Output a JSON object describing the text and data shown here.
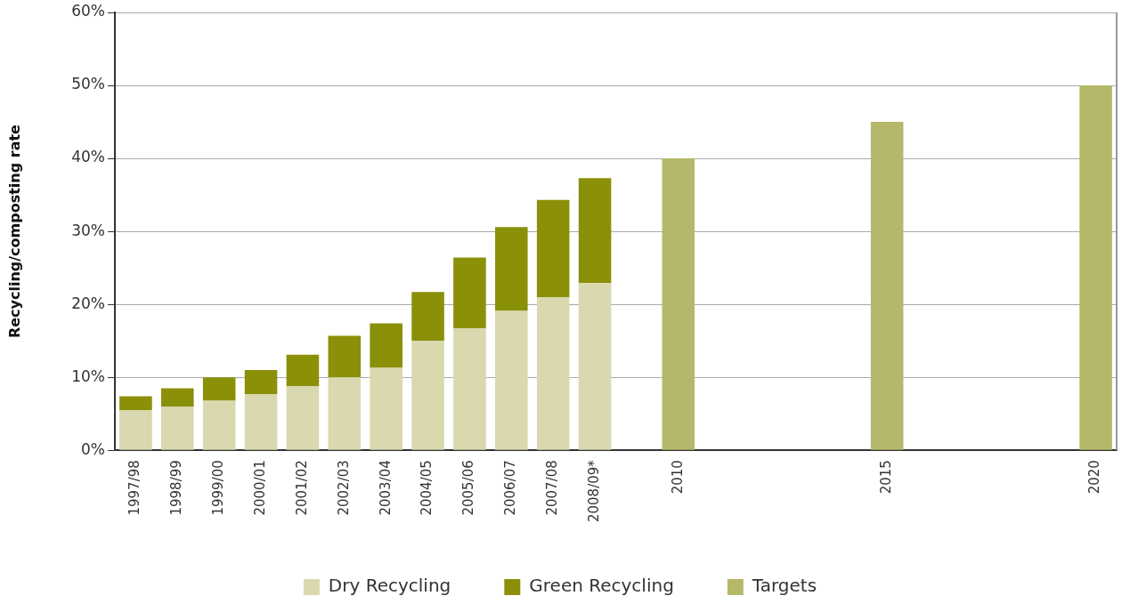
{
  "chart_data": {
    "type": "bar",
    "ylabel": "Recycling/composting rate",
    "categories": [
      "1997/98",
      "1998/99",
      "1999/00",
      "2000/01",
      "2001/02",
      "2002/03",
      "2003/04",
      "2004/05",
      "2005/06",
      "2006/07",
      "2007/08",
      "2008/09*",
      null,
      "2010",
      null,
      null,
      null,
      null,
      "2015",
      null,
      null,
      null,
      null,
      "2020"
    ],
    "stacked": true,
    "series": [
      {
        "name": "Dry Recycling",
        "color": "#d9d8ae",
        "values": [
          5.5,
          6.0,
          6.8,
          7.7,
          8.8,
          10.0,
          11.3,
          15.0,
          16.7,
          19.1,
          21.0,
          22.9,
          null,
          null,
          null,
          null,
          null,
          null,
          null,
          null,
          null,
          null,
          null,
          null
        ]
      },
      {
        "name": "Green Recycling",
        "color": "#8b9009",
        "values": [
          1.9,
          2.5,
          3.2,
          3.3,
          4.3,
          5.7,
          6.1,
          6.7,
          9.7,
          11.5,
          13.3,
          14.4,
          null,
          null,
          null,
          null,
          null,
          null,
          null,
          null,
          null,
          null,
          null,
          null
        ]
      },
      {
        "name": "Targets",
        "color": "#b5b86a",
        "values": [
          null,
          null,
          null,
          null,
          null,
          null,
          null,
          null,
          null,
          null,
          null,
          null,
          null,
          40,
          null,
          null,
          null,
          null,
          45,
          null,
          null,
          null,
          null,
          50
        ]
      }
    ],
    "ylim": [
      0,
      60
    ],
    "yticks": [
      {
        "value": 0,
        "label": "0%"
      },
      {
        "value": 10,
        "label": "10%"
      },
      {
        "value": 20,
        "label": "20%"
      },
      {
        "value": 30,
        "label": "30%"
      },
      {
        "value": 40,
        "label": "40%"
      },
      {
        "value": 50,
        "label": "50%"
      },
      {
        "value": 60,
        "label": "60%"
      }
    ],
    "grid": "y",
    "legend": "bottom"
  }
}
